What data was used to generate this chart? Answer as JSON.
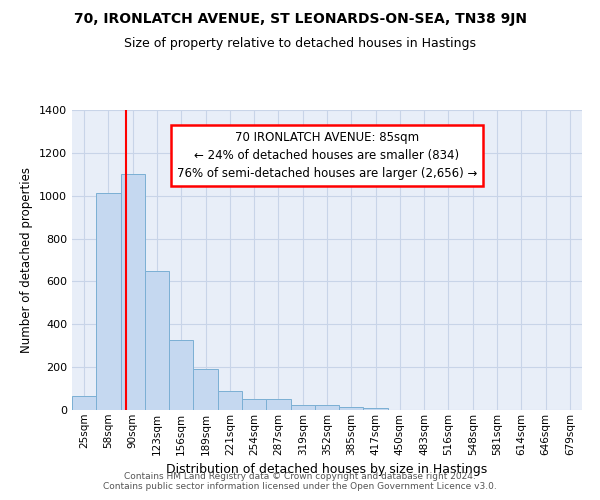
{
  "title1": "70, IRONLATCH AVENUE, ST LEONARDS-ON-SEA, TN38 9JN",
  "title2": "Size of property relative to detached houses in Hastings",
  "xlabel": "Distribution of detached houses by size in Hastings",
  "ylabel": "Number of detached properties",
  "categories": [
    "25sqm",
    "58sqm",
    "90sqm",
    "123sqm",
    "156sqm",
    "189sqm",
    "221sqm",
    "254sqm",
    "287sqm",
    "319sqm",
    "352sqm",
    "385sqm",
    "417sqm",
    "450sqm",
    "483sqm",
    "516sqm",
    "548sqm",
    "581sqm",
    "614sqm",
    "646sqm",
    "679sqm"
  ],
  "values": [
    65,
    1015,
    1100,
    650,
    325,
    190,
    90,
    50,
    50,
    25,
    25,
    15,
    10,
    0,
    0,
    0,
    0,
    0,
    0,
    0,
    0
  ],
  "bar_color": "#c5d8f0",
  "bar_edge_color": "#7bafd4",
  "red_line_x": 1.72,
  "annotation_text": "70 IRONLATCH AVENUE: 85sqm\n← 24% of detached houses are smaller (834)\n76% of semi-detached houses are larger (2,656) →",
  "box_color": "white",
  "box_edge_color": "red",
  "ylim": [
    0,
    1400
  ],
  "yticks": [
    0,
    200,
    400,
    600,
    800,
    1000,
    1200,
    1400
  ],
  "grid_color": "#c8d4e8",
  "bg_color": "#e8eef8",
  "footer1": "Contains HM Land Registry data © Crown copyright and database right 2024.",
  "footer2": "Contains public sector information licensed under the Open Government Licence v3.0."
}
